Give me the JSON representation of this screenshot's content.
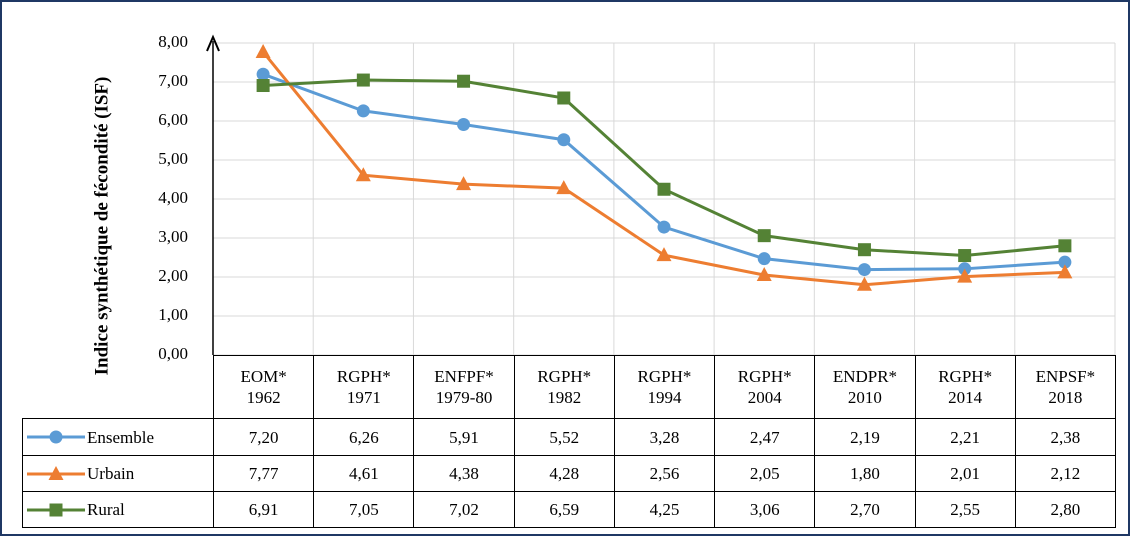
{
  "chart_data": {
    "type": "line",
    "y_label": "Indice synthétique de fécondité (ISF)",
    "categories": [
      "EOM*\n1962",
      "RGPH*\n1971",
      "ENFPF*\n1979-80",
      "RGPH*\n1982",
      "RGPH*\n1994",
      "RGPH*\n2004",
      "ENDPR*\n2010",
      "RGPH*\n2014",
      "ENPSF*\n2018"
    ],
    "series": [
      {
        "name": "Ensemble",
        "color": "#5b9bd5",
        "marker": "circle",
        "values": [
          7.2,
          6.26,
          5.91,
          5.52,
          3.28,
          2.47,
          2.19,
          2.21,
          2.38
        ],
        "value_labels": [
          "7,20",
          "6,26",
          "5,91",
          "5,52",
          "3,28",
          "2,47",
          "2,19",
          "2,21",
          "2,38"
        ]
      },
      {
        "name": "Urbain",
        "color": "#ed7d31",
        "marker": "triangle",
        "values": [
          7.77,
          4.61,
          4.38,
          4.28,
          2.56,
          2.05,
          1.8,
          2.01,
          2.12
        ],
        "value_labels": [
          "7,77",
          "4,61",
          "4,38",
          "4,28",
          "2,56",
          "2,05",
          "1,80",
          "2,01",
          "2,12"
        ]
      },
      {
        "name": "Rural",
        "color": "#548235",
        "marker": "square",
        "values": [
          6.91,
          7.05,
          7.02,
          6.59,
          4.25,
          3.06,
          2.7,
          2.55,
          2.8
        ],
        "value_labels": [
          "6,91",
          "7,05",
          "7,02",
          "6,59",
          "4,25",
          "3,06",
          "2,70",
          "2,55",
          "2,80"
        ]
      }
    ],
    "ylim": [
      0,
      8
    ],
    "yticks": [
      {
        "value": 0,
        "label": "0,00"
      },
      {
        "value": 1,
        "label": "1,00"
      },
      {
        "value": 2,
        "label": "2,00"
      },
      {
        "value": 3,
        "label": "3,00"
      },
      {
        "value": 4,
        "label": "4,00"
      },
      {
        "value": 5,
        "label": "5,00"
      },
      {
        "value": 6,
        "label": "6,00"
      },
      {
        "value": 7,
        "label": "7,00"
      },
      {
        "value": 8,
        "label": "8,00"
      }
    ],
    "grid": true
  }
}
